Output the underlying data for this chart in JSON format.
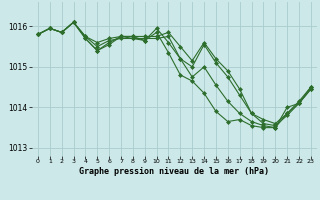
{
  "background_color": "#cce8e8",
  "grid_color": "#aacccc",
  "line_color": "#2d6e2d",
  "marker_color": "#2d6e2d",
  "xlabel": "Graphe pression niveau de la mer (hPa)",
  "xlim": [
    -0.5,
    23.5
  ],
  "ylim": [
    1012.8,
    1016.6
  ],
  "yticks": [
    1013,
    1014,
    1015,
    1016
  ],
  "xticks": [
    0,
    1,
    2,
    3,
    4,
    5,
    6,
    7,
    8,
    9,
    10,
    11,
    12,
    13,
    14,
    15,
    16,
    17,
    18,
    19,
    20,
    21,
    22,
    23
  ],
  "series": [
    [
      1015.8,
      1015.95,
      1015.85,
      1016.1,
      1015.75,
      1015.6,
      1015.7,
      1015.75,
      1015.75,
      1015.75,
      1015.75,
      1015.85,
      1015.5,
      1015.15,
      1015.6,
      1015.2,
      1014.9,
      1014.45,
      1013.85,
      1013.7,
      1013.6,
      1013.85,
      1014.15,
      1014.5
    ],
    [
      1015.8,
      1015.95,
      1015.85,
      1016.1,
      1015.75,
      1015.5,
      1015.65,
      1015.7,
      1015.7,
      1015.7,
      1015.7,
      1015.75,
      1015.2,
      1015.0,
      1015.55,
      1015.1,
      1014.75,
      1014.3,
      1013.85,
      1013.6,
      1013.55,
      1013.8,
      1014.1,
      1014.45
    ],
    [
      1015.8,
      1015.95,
      1015.85,
      1016.1,
      1015.7,
      1015.4,
      1015.6,
      1015.75,
      1015.75,
      1015.65,
      1015.95,
      1015.6,
      1015.2,
      1014.75,
      1015.0,
      1014.55,
      1014.15,
      1013.85,
      1013.65,
      1013.55,
      1013.5,
      1014.0,
      1014.1,
      1014.5
    ],
    [
      1015.8,
      1015.95,
      1015.85,
      1016.1,
      1015.7,
      1015.4,
      1015.55,
      1015.75,
      1015.7,
      1015.65,
      1015.85,
      1015.35,
      1014.8,
      1014.65,
      1014.35,
      1013.9,
      1013.65,
      1013.7,
      1013.55,
      1013.5,
      1013.5,
      1013.85,
      1014.1,
      1014.45
    ]
  ]
}
